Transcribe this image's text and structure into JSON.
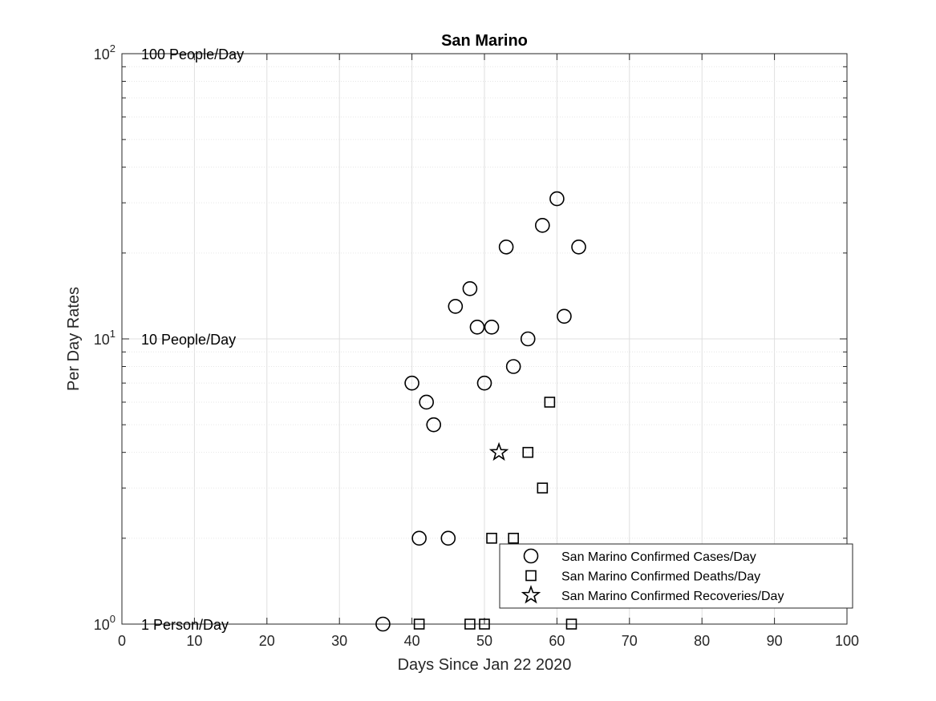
{
  "chart_data": {
    "type": "scatter",
    "title": "San Marino",
    "xlabel": "Days Since Jan 22 2020",
    "ylabel": "Per Day Rates",
    "xlim": [
      0,
      100
    ],
    "ylim": [
      1,
      100
    ],
    "yscale": "log",
    "grid": true,
    "legend_position": "bottom-right",
    "x_ticks": [
      0,
      10,
      20,
      30,
      40,
      50,
      60,
      70,
      80,
      90,
      100
    ],
    "y_ticks": [
      {
        "value": 1,
        "base": "10",
        "exp": "0"
      },
      {
        "value": 10,
        "base": "10",
        "exp": "1"
      },
      {
        "value": 100,
        "base": "10",
        "exp": "2"
      }
    ],
    "reference_labels": [
      {
        "y": 100,
        "text": "100 People/Day"
      },
      {
        "y": 10,
        "text": "10 People/Day"
      },
      {
        "y": 1,
        "text": "1 Person/Day"
      }
    ],
    "series": [
      {
        "name": "San Marino Confirmed Cases/Day",
        "marker": "circle",
        "points": [
          [
            36,
            1
          ],
          [
            40,
            7
          ],
          [
            41,
            2
          ],
          [
            42,
            6
          ],
          [
            43,
            5
          ],
          [
            45,
            2
          ],
          [
            46,
            13
          ],
          [
            48,
            15
          ],
          [
            49,
            11
          ],
          [
            50,
            7
          ],
          [
            51,
            11
          ],
          [
            53,
            21
          ],
          [
            54,
            8
          ],
          [
            56,
            10
          ],
          [
            58,
            25
          ],
          [
            60,
            31
          ],
          [
            61,
            12
          ],
          [
            63,
            21
          ]
        ]
      },
      {
        "name": "San Marino Confirmed Deaths/Day",
        "marker": "square",
        "points": [
          [
            41,
            1
          ],
          [
            48,
            1
          ],
          [
            50,
            1
          ],
          [
            51,
            2
          ],
          [
            54,
            2
          ],
          [
            56,
            4
          ],
          [
            58,
            3
          ],
          [
            59,
            6
          ],
          [
            62,
            1
          ]
        ]
      },
      {
        "name": "San Marino Confirmed Recoveries/Day",
        "marker": "star",
        "points": [
          [
            52,
            4
          ]
        ]
      }
    ]
  }
}
